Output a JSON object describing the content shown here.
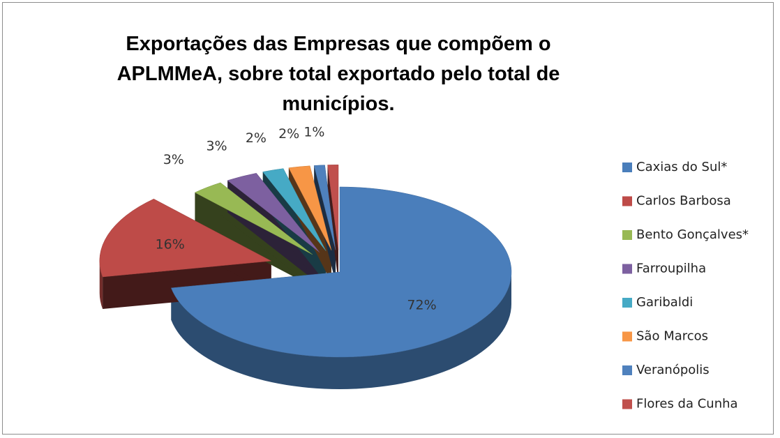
{
  "chart_data": {
    "type": "pie3d",
    "title": "Exportações das Empresas que compõem o APLMMeA, sobre total exportado pelo total de municípios.",
    "categories": [
      "Caxias do Sul*",
      "Carlos Barbosa",
      "Bento Gonçalves*",
      "Farroupilha",
      "Garibaldi",
      "São Marcos",
      "Veranópolis",
      "Flores da Cunha"
    ],
    "values": [
      72,
      16,
      3,
      3,
      2,
      2,
      1,
      1
    ],
    "value_labels": [
      "72%",
      "16%",
      "3%",
      "3%",
      "2%",
      "2%",
      "1%",
      null
    ],
    "colors": [
      "#4a7ebb",
      "#be4b48",
      "#98b954",
      "#7d60a0",
      "#46aac5",
      "#f79646",
      "#4f81bd",
      "#c0504d"
    ],
    "legend": "right"
  }
}
